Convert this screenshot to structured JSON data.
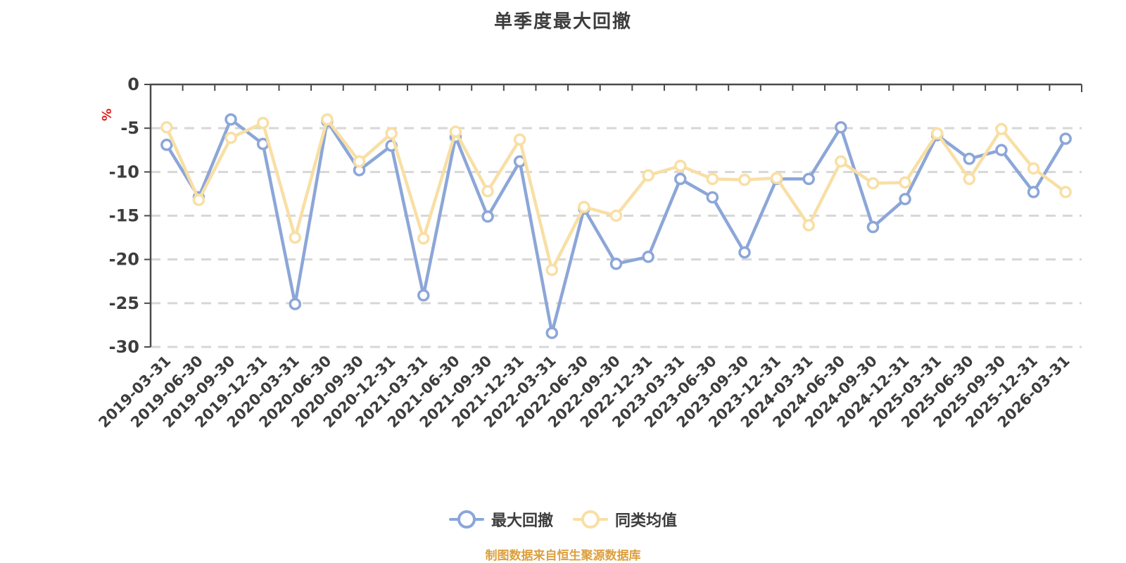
{
  "title": "单季度最大回撤",
  "footer": {
    "text": "制图数据来自恒生聚源数据库"
  },
  "colors": {
    "series_blue": "#8CA6D8",
    "series_yellow": "#F8DFA4",
    "axis": "#4A4A4A",
    "grid": "#D7D7D7",
    "text": "#3D3D3D",
    "footer_orange": "#DD9F3D",
    "unit_red": "#E02020",
    "marker_fill": "#FFFFFF"
  },
  "chart_data": {
    "type": "line",
    "title": "单季度最大回撤",
    "xlabel": "",
    "ylabel": "",
    "y_unit": "%",
    "ylim": [
      -30,
      0
    ],
    "y_ticks": [
      0,
      -5,
      -10,
      -15,
      -20,
      -25,
      -30
    ],
    "grid": "horizontal-dashed",
    "legend_position": "bottom",
    "x_label_rotation": 45,
    "categories": [
      "2019-03-31",
      "2019-06-30",
      "2019-09-30",
      "2019-12-31",
      "2020-03-31",
      "2020-06-30",
      "2020-09-30",
      "2020-12-31",
      "2021-03-31",
      "2021-06-30",
      "2021-09-30",
      "2021-12-31",
      "2022-03-31",
      "2022-06-30",
      "2022-09-30",
      "2022-12-31",
      "2023-03-31",
      "2023-06-30",
      "2023-09-30",
      "2023-12-31",
      "2024-03-31",
      "2024-06-30",
      "2024-09-30",
      "2024-12-31",
      "2025-03-31",
      "2025-06-30",
      "2025-09-30",
      "2025-12-31",
      "2026-03-31"
    ],
    "series": [
      {
        "name": "最大回撤",
        "color": "#8CA6D8",
        "values": [
          -6.9,
          -12.9,
          -4.0,
          -6.8,
          -25.1,
          -4.2,
          -9.8,
          -7.0,
          -24.1,
          -6.0,
          -15.1,
          -8.8,
          -28.4,
          -14.2,
          -20.5,
          -19.7,
          -10.8,
          -12.9,
          -19.2,
          -10.8,
          -10.8,
          -4.9,
          -16.3,
          -13.1,
          -5.8,
          -8.5,
          -7.5,
          -12.3,
          -6.2
        ]
      },
      {
        "name": "同类均值",
        "color": "#F8DFA4",
        "values": [
          -4.9,
          -13.2,
          -6.1,
          -4.4,
          -17.5,
          -4.0,
          -8.8,
          -5.6,
          -17.6,
          -5.4,
          -12.2,
          -6.3,
          -21.2,
          -14.0,
          -15.0,
          -10.4,
          -9.3,
          -10.8,
          -10.9,
          -10.7,
          -16.1,
          -8.8,
          -11.3,
          -11.2,
          -5.6,
          -10.8,
          -5.1,
          -9.6,
          -12.3
        ]
      }
    ]
  }
}
